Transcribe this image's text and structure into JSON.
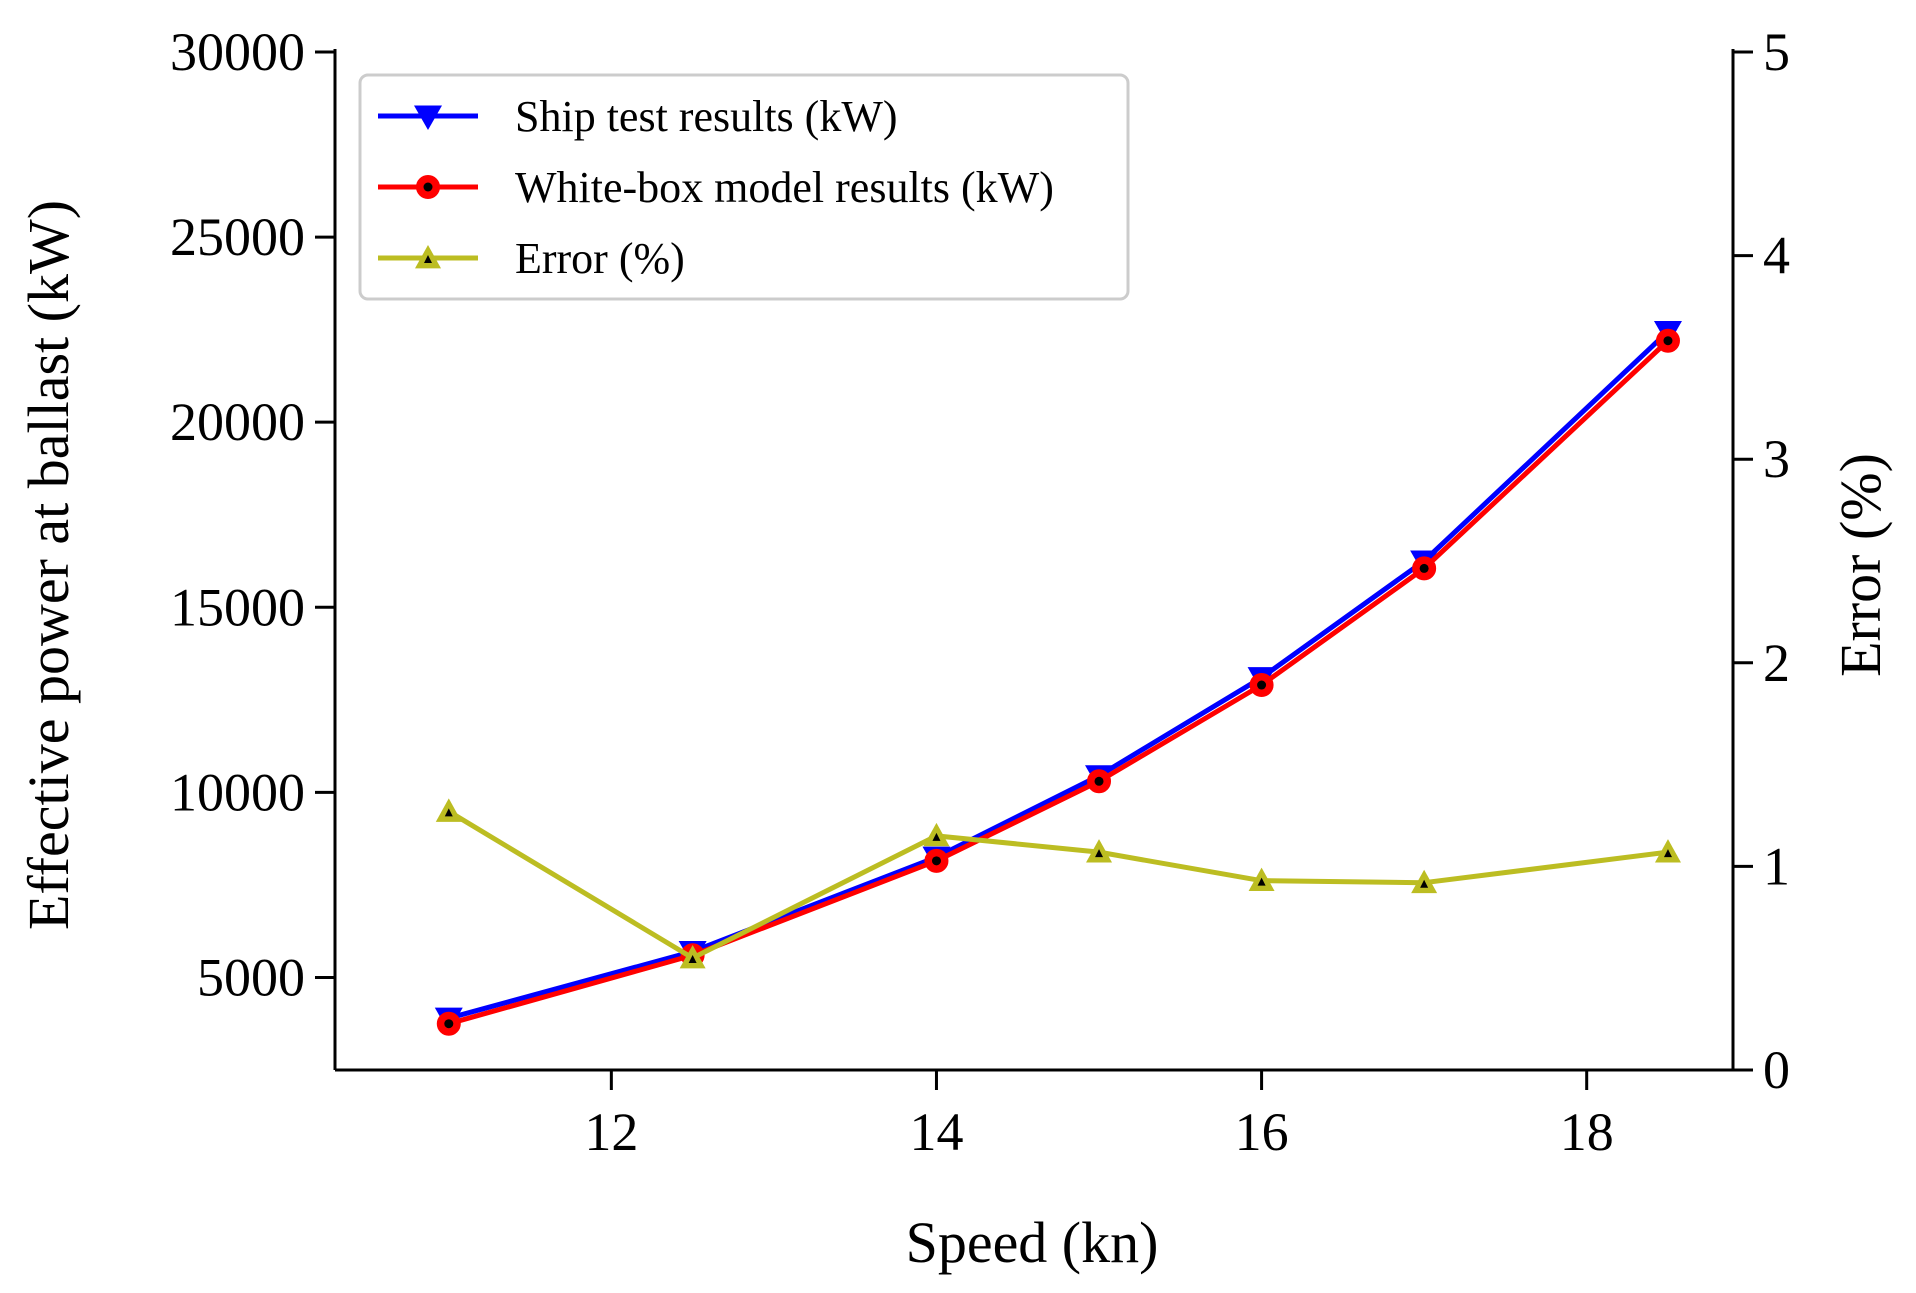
{
  "chart_data": {
    "type": "line",
    "title": "",
    "xlabel": "Speed (kn)",
    "ylabel": "Effective power at ballast (kW)",
    "y2label": "Error (%)",
    "xlim": [
      10.3,
      18.9
    ],
    "ylim": [
      2500,
      30000
    ],
    "y2lim": [
      0,
      5
    ],
    "xticks": [
      12,
      14,
      16,
      18
    ],
    "yticks": [
      5000,
      10000,
      15000,
      20000,
      25000,
      30000
    ],
    "y2ticks": [
      0,
      1,
      2,
      3,
      4,
      5
    ],
    "x": [
      11,
      12.5,
      14,
      15,
      16,
      17,
      18.5
    ],
    "series": [
      {
        "name": "Ship test results (kW)",
        "axis": "left",
        "color": "#0000ff",
        "marker": "triangle-down",
        "values": [
          3900,
          5700,
          8250,
          10450,
          13100,
          16250,
          22450
        ]
      },
      {
        "name": "White-box model results (kW)",
        "axis": "left",
        "color": "#ff0000",
        "marker": "circle",
        "values": [
          3750,
          5600,
          8150,
          10300,
          12900,
          16050,
          22200
        ]
      },
      {
        "name": "Error (%)",
        "axis": "right",
        "color": "#bcbd22",
        "marker": "triangle-up",
        "values": [
          1.27,
          0.55,
          1.15,
          1.07,
          0.93,
          0.92,
          1.07
        ]
      }
    ],
    "legend_position": "top-left",
    "grid": false
  }
}
